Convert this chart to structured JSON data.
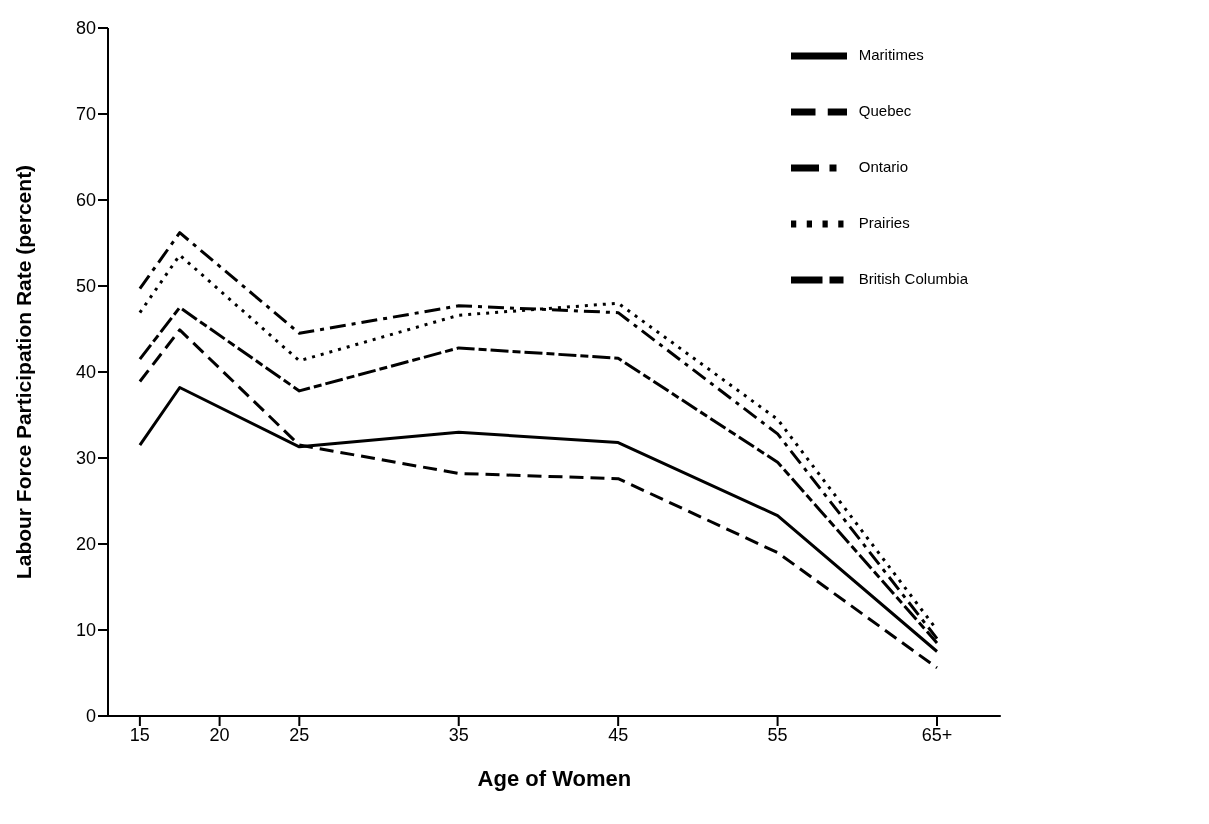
{
  "chart_data": {
    "type": "line",
    "xlabel": "Age of Women",
    "ylabel": "Labour Force Participation Rate (percent)",
    "x": [
      15,
      17.5,
      25,
      35,
      45,
      55,
      65
    ],
    "xlim": [
      13,
      69
    ],
    "xticks": [
      15,
      20,
      25,
      35,
      45,
      55,
      {
        "value": 65,
        "label": "65+"
      }
    ],
    "ylim": [
      0,
      80
    ],
    "yticks": [
      0,
      10,
      20,
      30,
      40,
      50,
      60,
      70,
      80
    ],
    "grid": false,
    "legend": "top right",
    "marker": "none",
    "series": [
      {
        "name": "Maritimes",
        "color": "#000000",
        "line_style": "solid",
        "values": [
          31.5,
          38.2,
          31.3,
          33,
          31.8,
          23.3,
          7.5
        ]
      },
      {
        "name": "Quebec",
        "color": "#000000",
        "line_style": "dashed",
        "values": [
          38.9,
          44.9,
          31.5,
          28.2,
          27.6,
          19,
          5.6
        ]
      },
      {
        "name": "Ontario",
        "color": "#000000",
        "line_style": "dashdot",
        "values": [
          49.7,
          56.2,
          44.5,
          47.7,
          46.9,
          32.8,
          9
        ]
      },
      {
        "name": "Prairies",
        "color": "#000000",
        "line_style": "dotted",
        "values": [
          46.9,
          53.6,
          41.3,
          46.6,
          48,
          34.5,
          10
        ]
      },
      {
        "name": "British Columbia",
        "color": "#000000",
        "line_style": "longdash",
        "values": [
          41.5,
          47.5,
          37.8,
          42.8,
          41.6,
          29.5,
          8.5
        ]
      }
    ]
  }
}
